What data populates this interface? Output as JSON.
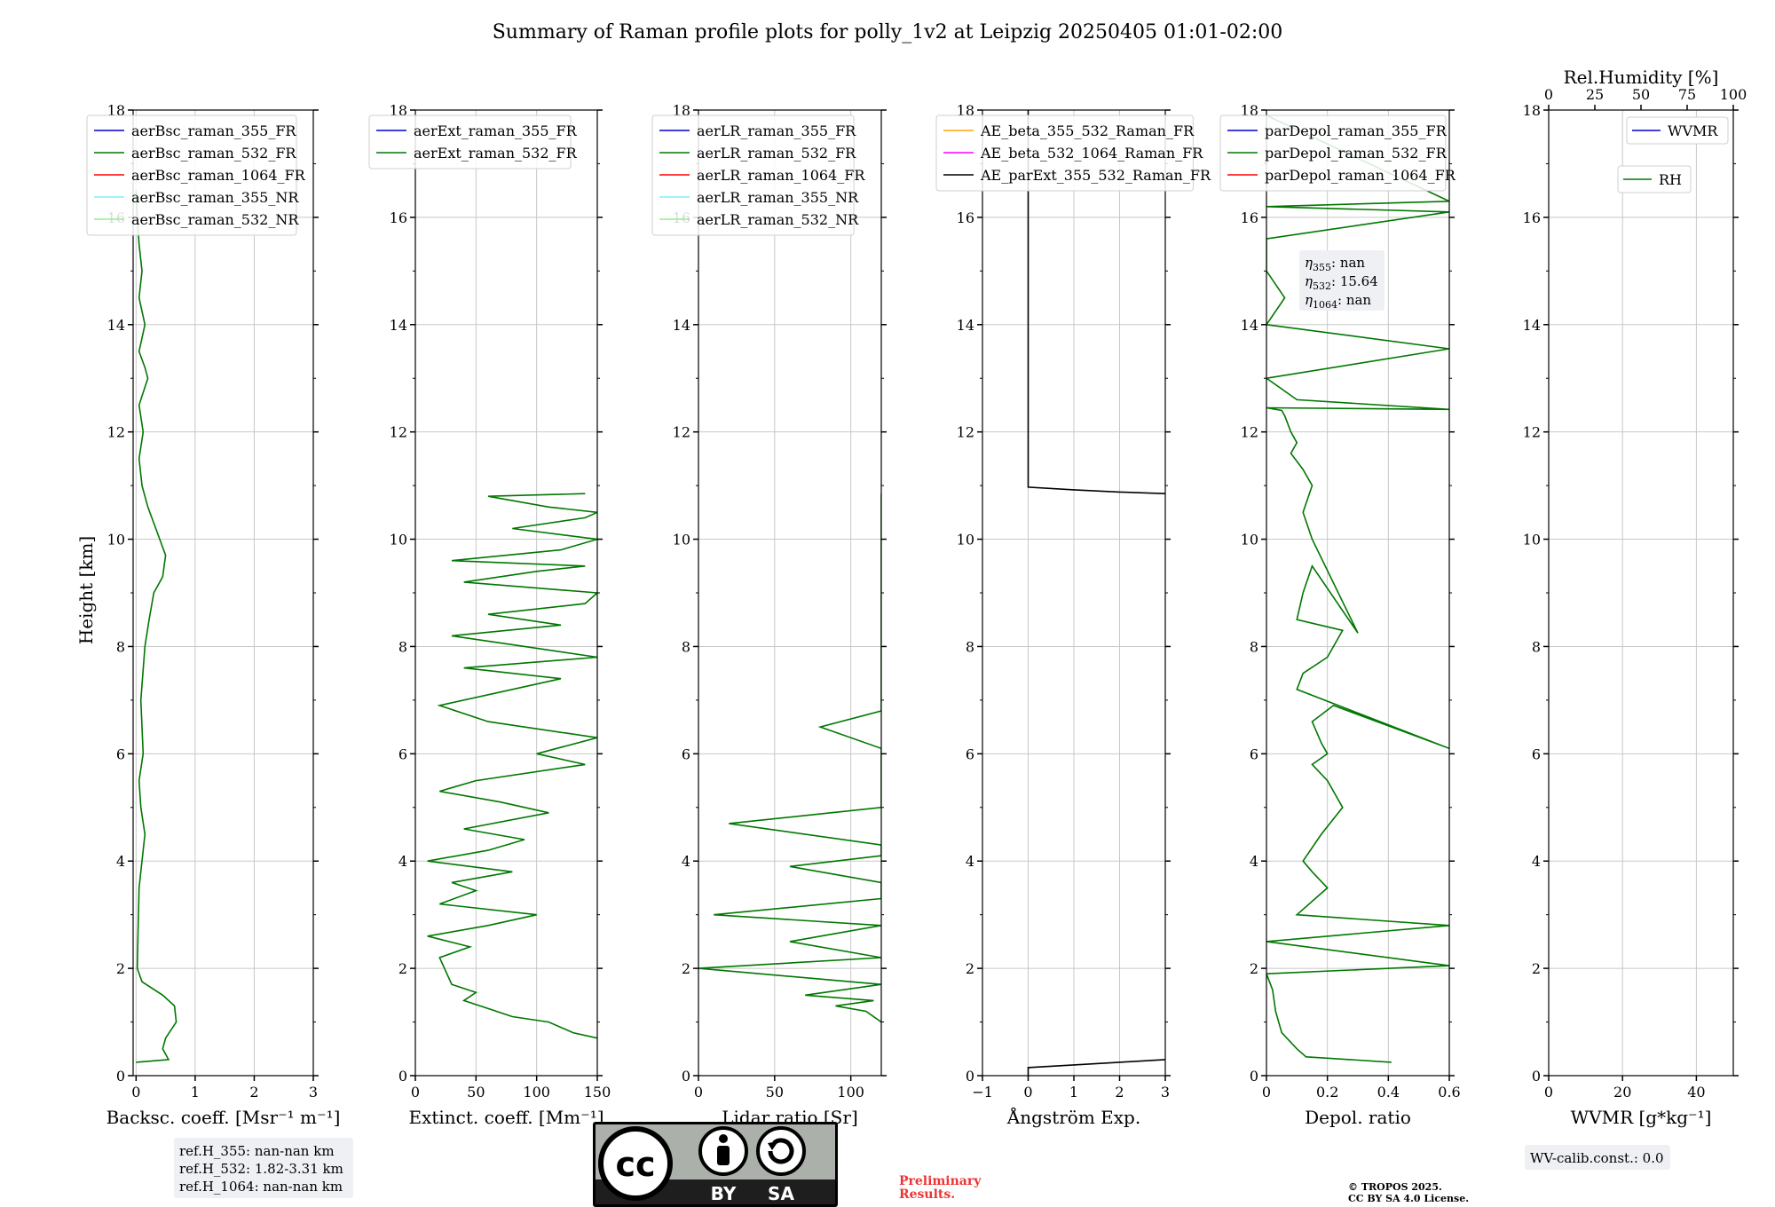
{
  "title": "Summary of Raman profile plots for polly_1v2 at Leipzig 20250405 01:01-02:00",
  "y_label": "Height [km]",
  "colors": {
    "ch355": "#0000cc",
    "ch532": "#007700",
    "ch1064": "#ff0000",
    "ch355nr": "#7ff0ff",
    "ch532nr": "#90ee90",
    "orange": "#ffa500",
    "magenta": "#ff00ff",
    "black": "#000000"
  },
  "chart_data": [
    {
      "type": "line",
      "xlabel": "Backsc. coeff. [Msr⁻¹ m⁻¹]",
      "xlim": [
        -0.05,
        3
      ],
      "xticks": [
        0,
        1,
        2,
        3
      ],
      "ylim": [
        0,
        18
      ],
      "yticks": [
        0,
        2,
        4,
        6,
        8,
        10,
        12,
        14,
        16,
        18
      ],
      "grid": true,
      "legend_position": "top-left",
      "series": [
        {
          "name": "aerBsc_raman_355_FR",
          "color": "ch355",
          "x": [],
          "y": []
        },
        {
          "name": "aerBsc_raman_532_FR",
          "color": "ch532",
          "x": [
            0,
            0.55,
            0.5,
            0.45,
            0.5,
            0.68,
            0.65,
            0.45,
            0.1,
            0.02,
            0.03,
            0.04,
            0.05,
            0.1,
            0.15,
            0.08,
            0.05,
            0.12,
            0.08,
            0.15,
            0.22,
            0.3,
            0.45,
            0.5,
            0.4,
            0.3,
            0.2,
            0.1,
            0.05,
            0.12,
            0.05,
            0.2,
            0.15,
            0.05,
            0.15,
            0.05,
            0.1,
            0.05,
            0.02,
            0.0
          ],
          "y": [
            0.25,
            0.3,
            0.4,
            0.5,
            0.7,
            1.0,
            1.3,
            1.5,
            1.75,
            2.0,
            2.5,
            3.0,
            3.5,
            4.0,
            4.5,
            5.0,
            5.5,
            6.0,
            7.0,
            8.0,
            8.5,
            9.0,
            9.3,
            9.7,
            10.0,
            10.3,
            10.6,
            11.0,
            11.5,
            12.0,
            12.5,
            13.0,
            13.2,
            13.5,
            14.0,
            14.5,
            15.0,
            15.5,
            16.0,
            16.5
          ]
        },
        {
          "name": "aerBsc_raman_1064_FR",
          "color": "ch1064",
          "x": [],
          "y": []
        },
        {
          "name": "aerBsc_raman_355_NR",
          "color": "ch355nr",
          "x": [],
          "y": []
        },
        {
          "name": "aerBsc_raman_532_NR",
          "color": "ch532nr",
          "x": [],
          "y": []
        }
      ]
    },
    {
      "type": "line",
      "xlabel": "Extinct. coeff. [Mm⁻¹]",
      "xlim": [
        0,
        150
      ],
      "xticks": [
        0,
        50,
        100,
        150
      ],
      "ylim": [
        0,
        18
      ],
      "yticks": [
        0,
        2,
        4,
        6,
        8,
        10,
        12,
        14,
        16,
        18
      ],
      "grid": true,
      "legend_position": "top-left",
      "series": [
        {
          "name": "aerExt_raman_355_FR",
          "color": "ch355",
          "x": [],
          "y": []
        },
        {
          "name": "aerExt_raman_532_FR",
          "color": "ch532",
          "x": [
            150,
            130,
            110,
            80,
            60,
            40,
            50,
            30,
            20,
            45,
            10,
            60,
            100,
            20,
            50,
            30,
            80,
            10,
            60,
            90,
            40,
            110,
            70,
            20,
            50,
            140,
            100,
            150,
            60,
            20,
            80,
            120,
            40,
            150,
            90,
            30,
            120,
            60,
            140,
            150,
            40,
            100,
            140,
            30,
            120,
            150,
            80,
            140,
            150,
            110,
            60,
            140
          ],
          "y": [
            0.7,
            0.8,
            1.0,
            1.1,
            1.25,
            1.4,
            1.55,
            1.7,
            2.2,
            2.4,
            2.6,
            2.8,
            3.0,
            3.2,
            3.45,
            3.6,
            3.8,
            4.0,
            4.2,
            4.4,
            4.6,
            4.9,
            5.1,
            5.3,
            5.5,
            5.8,
            6.0,
            6.3,
            6.6,
            6.9,
            7.2,
            7.4,
            7.6,
            7.8,
            8.0,
            8.2,
            8.4,
            8.6,
            8.8,
            9.0,
            9.2,
            9.4,
            9.5,
            9.6,
            9.8,
            10.0,
            10.2,
            10.4,
            10.5,
            10.6,
            10.8,
            10.85
          ]
        }
      ]
    },
    {
      "type": "line",
      "xlabel": "Lidar ratio [Sr]",
      "xlim": [
        0,
        120
      ],
      "xticks": [
        0,
        50,
        100
      ],
      "ylim": [
        0,
        18
      ],
      "yticks": [
        0,
        2,
        4,
        6,
        8,
        10,
        12,
        14,
        16,
        18
      ],
      "grid": true,
      "legend_position": "top-left",
      "series": [
        {
          "name": "aerLR_raman_355_FR",
          "color": "ch355",
          "x": [],
          "y": []
        },
        {
          "name": "aerLR_raman_532_FR",
          "color": "ch532",
          "x": [
            120,
            110,
            90,
            115,
            70,
            120,
            0,
            120,
            60,
            120,
            10,
            120,
            120,
            60,
            120,
            120,
            20,
            120,
            120,
            120,
            120,
            80,
            120,
            120,
            120,
            120,
            120,
            120,
            120,
            120,
            120,
            120,
            120,
            120,
            120,
            120
          ],
          "y": [
            1.0,
            1.2,
            1.3,
            1.4,
            1.5,
            1.7,
            2.0,
            2.2,
            2.5,
            2.8,
            3.0,
            3.3,
            3.6,
            3.9,
            4.1,
            4.3,
            4.7,
            5.0,
            5.5,
            5.8,
            6.1,
            6.5,
            6.8,
            7.2,
            7.5,
            7.8,
            8.2,
            8.6,
            8.8,
            9.2,
            9.5,
            9.7,
            10.0,
            10.3,
            10.5,
            10.85
          ]
        },
        {
          "name": "aerLR_raman_1064_FR",
          "color": "ch1064",
          "x": [],
          "y": []
        },
        {
          "name": "aerLR_raman_355_NR",
          "color": "ch355nr",
          "x": [],
          "y": []
        },
        {
          "name": "aerLR_raman_532_NR",
          "color": "ch532nr",
          "x": [],
          "y": []
        }
      ]
    },
    {
      "type": "line",
      "xlabel": "Ångström Exp.",
      "xlim": [
        -1,
        3
      ],
      "xticks": [
        -1,
        0,
        1,
        2,
        3
      ],
      "ylim": [
        0,
        18
      ],
      "yticks": [
        0,
        2,
        4,
        6,
        8,
        10,
        12,
        14,
        16,
        18
      ],
      "grid": true,
      "legend_position": "top-left",
      "series": [
        {
          "name": "AE_beta_355_532_Raman_FR",
          "color": "orange",
          "x": [],
          "y": []
        },
        {
          "name": "AE_beta_532_1064_Raman_FR",
          "color": "magenta",
          "x": [],
          "y": []
        },
        {
          "name": "AE_parExt_355_532_Raman_FR",
          "color": "black",
          "x": [
            0,
            0,
            1,
            2,
            3
          ],
          "y": [
            0.0,
            0.15,
            0.2,
            0.25,
            0.3
          ]
        },
        {
          "name": "",
          "color": "black",
          "x": [
            3,
            2,
            1,
            0,
            0
          ],
          "y": [
            10.85,
            10.88,
            10.92,
            10.97,
            18
          ]
        }
      ]
    },
    {
      "type": "line",
      "xlabel": "Depol. ratio",
      "xlim": [
        0,
        0.6
      ],
      "xticks": [
        0.0,
        0.2,
        0.4,
        0.6
      ],
      "ylim": [
        0,
        18
      ],
      "yticks": [
        0,
        2,
        4,
        6,
        8,
        10,
        12,
        14,
        16,
        18
      ],
      "grid": true,
      "legend_position": "top-left",
      "annotation": {
        "eta355": "nan",
        "eta532": "15.64",
        "eta1064": "nan"
      },
      "series": [
        {
          "name": "parDepol_raman_355_FR",
          "color": "ch355",
          "x": [],
          "y": []
        },
        {
          "name": "parDepol_raman_532_FR",
          "color": "ch532",
          "x": [
            0.41,
            0.13,
            0.1,
            0.05,
            0.03,
            0.02,
            0.0,
            0.6,
            0.0,
            0.6,
            0.1,
            0.2,
            0.15,
            0.12,
            0.18,
            0.25,
            0.2,
            0.15,
            0.2,
            0.18,
            0.15,
            0.22,
            0.6,
            0.1,
            0.12,
            0.2,
            0.25,
            0.1,
            0.12,
            0.15,
            0.3,
            0.15,
            0.12,
            0.15,
            0.12,
            0.08,
            0.1,
            0.08,
            0.06,
            0.05,
            0.0,
            0.6,
            0.1,
            0.0,
            0.6,
            0.0,
            0.06,
            0.0,
            0.0,
            0.6,
            0.0,
            0.6,
            0.0
          ],
          "y": [
            0.25,
            0.35,
            0.5,
            0.8,
            1.2,
            1.6,
            1.9,
            2.05,
            2.5,
            2.8,
            3.0,
            3.5,
            3.8,
            4.0,
            4.5,
            5.0,
            5.5,
            5.8,
            6.0,
            6.2,
            6.6,
            6.9,
            6.1,
            7.2,
            7.5,
            7.8,
            8.3,
            8.5,
            9.0,
            9.5,
            8.25,
            10.0,
            10.5,
            11.0,
            11.3,
            11.6,
            11.8,
            12.0,
            12.3,
            12.4,
            12.45,
            12.42,
            12.6,
            13.0,
            13.55,
            14.0,
            14.5,
            15.0,
            15.6,
            16.1,
            16.2,
            16.3,
            17.9
          ]
        },
        {
          "name": "parDepol_raman_1064_FR",
          "color": "ch1064",
          "x": [],
          "y": []
        }
      ]
    },
    {
      "type": "line",
      "xlabel": "WVMR [g*kg⁻¹]",
      "xlim": [
        0,
        50
      ],
      "xticks": [
        0,
        20,
        40
      ],
      "ylim": [
        0,
        18
      ],
      "yticks": [
        0,
        2,
        4,
        6,
        8,
        10,
        12,
        14,
        16,
        18
      ],
      "grid": true,
      "legend_position": "top-right",
      "x2label": "Rel.Humidity [%]",
      "x2lim": [
        0,
        100
      ],
      "x2ticks": [
        0,
        25,
        50,
        75,
        100
      ],
      "series": [
        {
          "name": "WVMR",
          "color": "ch355",
          "x": [],
          "y": []
        },
        {
          "name": "RH",
          "color": "ch532",
          "x": [],
          "y": []
        }
      ]
    }
  ],
  "ref_heights": {
    "lines": [
      "ref.H_355: nan-nan km",
      "ref.H_532: 1.82-3.31 km",
      "ref.H_1064: nan-nan km"
    ]
  },
  "wv_calib": "WV-calib.const.: 0.0",
  "license": {
    "by": "BY",
    "sa": "SA",
    "cc": "cc"
  },
  "preliminary": [
    "Preliminary",
    "Results."
  ],
  "copyright": [
    "© TROPOS 2025.",
    "CC BY SA 4.0 License."
  ]
}
